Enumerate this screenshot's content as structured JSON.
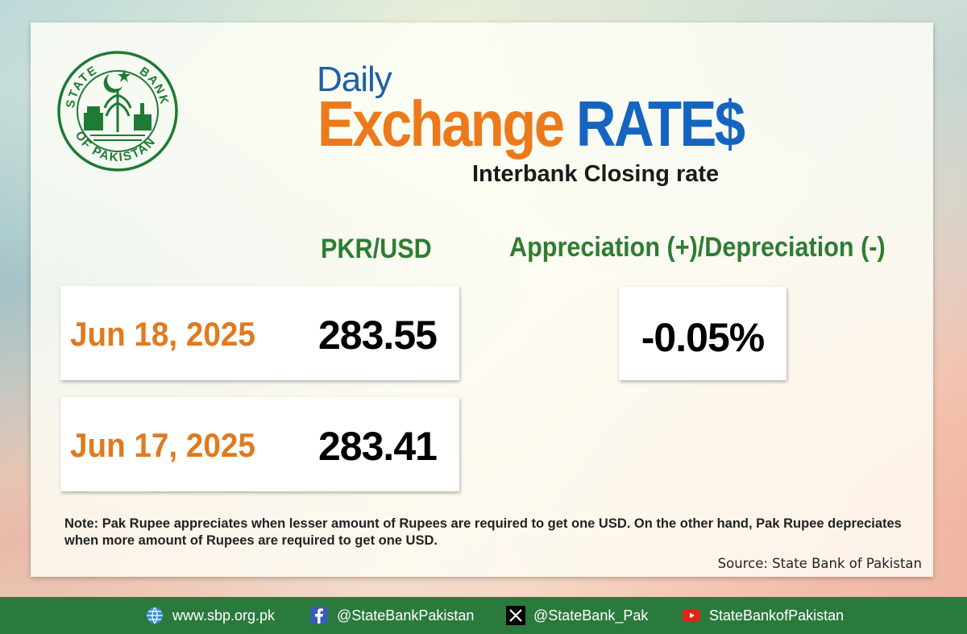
{
  "logo": {
    "top_text": "STATE BANK",
    "bottom_text": "OF PAKISTAN",
    "left_text": "STATE",
    "right_text": "BANK"
  },
  "title": {
    "daily": "Daily",
    "exchange": "Exchange",
    "rates": "RATE$",
    "subtitle": "Interbank Closing rate"
  },
  "columns": {
    "pair": "PKR/USD",
    "change": "Appreciation (+)/Depreciation (-)"
  },
  "rates": [
    {
      "date": "Jun 18, 2025",
      "value": "283.55"
    },
    {
      "date": "Jun 17, 2025",
      "value": "283.41"
    }
  ],
  "change": {
    "value": "-0.05%"
  },
  "note": "Note: Pak Rupee appreciates when lesser amount of Rupees are required to get one USD.  On the other hand, Pak Rupee depreciates when more amount of Rupees are required to get one USD.",
  "source": "Source: State Bank of Pakistan",
  "footer": {
    "website": {
      "text": "www.sbp.org.pk",
      "icon": "globe-icon"
    },
    "facebook": {
      "text": "@StateBankPakistan",
      "icon": "facebook-icon"
    },
    "x": {
      "text": "@StateBank_Pak",
      "icon": "x-icon"
    },
    "youtube": {
      "text": "StateBankofPakistan",
      "icon": "youtube-icon"
    }
  },
  "colors": {
    "orange": "#ec7a1c",
    "blue": "#1565c0",
    "green": "#2e7d32",
    "footer_green": "#2b7a3d",
    "logo_green": "#1e7a34"
  }
}
